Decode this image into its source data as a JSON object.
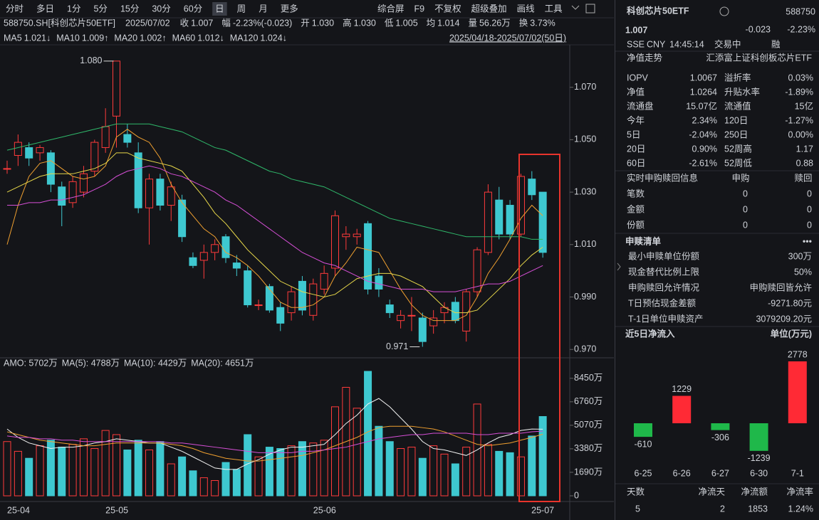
{
  "toolbar": {
    "left": [
      "分时",
      "多日",
      "1分",
      "5分",
      "15分",
      "30分",
      "60分",
      "日",
      "周",
      "月",
      "更多"
    ],
    "active_index": 7,
    "right": [
      "综合屏",
      "F9",
      "不复权",
      "超级叠加",
      "画线",
      "工具"
    ]
  },
  "info": {
    "title": "588750.SH[科创芯片50ETF]",
    "date": "2025/07/02",
    "fields": [
      {
        "label": "收",
        "value": "1.007",
        "tone": "down"
      },
      {
        "label": "幅",
        "value": "-2.23%(-0.023)",
        "tone": "down"
      },
      {
        "label": "开",
        "value": "1.030",
        "tone": "flat"
      },
      {
        "label": "高",
        "value": "1.030",
        "tone": "flat"
      },
      {
        "label": "低",
        "value": "1.005",
        "tone": "down"
      },
      {
        "label": "均",
        "value": "1.014",
        "tone": "down"
      },
      {
        "label": "量",
        "value": "56.26万",
        "tone": "flat"
      },
      {
        "label": "换",
        "value": "3.73%",
        "tone": "flat"
      }
    ],
    "range": "2025/04/18-2025/07/02(50日)"
  },
  "chart_data": [
    {
      "type": "candlestick",
      "open": [
        1.039,
        1.044,
        1.047,
        1.045,
        1.045,
        1.032,
        1.026,
        1.03,
        1.038,
        1.047,
        1.059,
        1.052,
        1.045,
        1.024,
        1.035,
        1.025,
        1.027,
        1.005,
        1.004,
        1.007,
        1.013,
        1.003,
        1.0,
        0.987,
        0.994,
        0.986,
        0.984,
        0.996,
        0.983,
        0.993,
        1.001,
        1.013,
        1.013,
        1.018,
        0.998,
        0.987,
        0.981,
        0.983,
        0.982,
        0.979,
        0.984,
        0.988,
        0.977,
        0.992,
        1.007,
        1.027,
        1.025,
        1.014,
        1.035,
        1.03
      ],
      "high": [
        1.042,
        1.052,
        1.049,
        1.048,
        1.046,
        1.034,
        1.036,
        1.04,
        1.05,
        1.062,
        1.08,
        1.056,
        1.049,
        1.037,
        1.037,
        1.034,
        1.029,
        1.007,
        1.01,
        1.012,
        1.014,
        1.006,
        1.002,
        0.989,
        0.995,
        0.988,
        0.994,
        0.998,
        0.997,
        1.002,
        1.023,
        1.017,
        1.016,
        1.019,
        1.001,
        0.989,
        0.985,
        0.99,
        0.984,
        0.985,
        0.988,
        0.99,
        0.993,
        1.009,
        1.033,
        1.032,
        1.027,
        1.037,
        1.038,
        1.03
      ],
      "low": [
        1.037,
        1.04,
        1.04,
        1.042,
        1.03,
        1.017,
        1.024,
        1.028,
        1.036,
        1.045,
        1.047,
        1.047,
        1.022,
        1.01,
        1.023,
        1.019,
        1.011,
        1.001,
        0.997,
        1.004,
        1.003,
        0.998,
        0.986,
        0.985,
        0.984,
        0.977,
        0.981,
        0.983,
        0.981,
        0.991,
        0.998,
        1.008,
        1.01,
        0.991,
        0.99,
        0.982,
        0.978,
        0.977,
        0.971,
        0.976,
        0.98,
        0.98,
        0.973,
        0.99,
        1.006,
        1.012,
        1.012,
        1.013,
        1.027,
        1.005
      ],
      "close": [
        1.039,
        1.049,
        1.043,
        1.047,
        1.033,
        1.025,
        1.034,
        1.037,
        1.049,
        1.055,
        1.08,
        1.049,
        1.024,
        1.035,
        1.025,
        1.032,
        1.013,
        1.002,
        1.007,
        1.01,
        1.005,
        1.001,
        0.987,
        0.987,
        0.985,
        0.98,
        0.992,
        0.985,
        0.995,
        0.999,
        1.021,
        1.014,
        1.014,
        0.993,
        0.993,
        0.984,
        0.983,
        0.983,
        0.973,
        0.982,
        0.986,
        0.981,
        0.992,
        1.008,
        1.03,
        1.014,
        1.014,
        1.036,
        1.029,
        1.007
      ],
      "up_color": "#ff3b3b",
      "down_color": "#3ec8d0",
      "ylim": [
        0.9668,
        1.0843
      ],
      "yticks": [
        {
          "value": 0.97,
          "label": "0.970"
        },
        {
          "value": 0.99,
          "label": "0.990"
        },
        {
          "value": 1.01,
          "label": "1.010"
        },
        {
          "value": 1.03,
          "label": "1.030"
        },
        {
          "value": 1.05,
          "label": "1.050"
        },
        {
          "value": 1.07,
          "label": "1.070"
        }
      ],
      "series": [
        {
          "name": "MA5",
          "legend_value": "1.021↓",
          "color": "#f0a030",
          "values": [
            1.01,
            1.025,
            1.036,
            1.041,
            1.042,
            1.039,
            1.036,
            1.035,
            1.036,
            1.04,
            1.051,
            1.054,
            1.051,
            1.049,
            1.043,
            1.033,
            1.026,
            1.021,
            1.016,
            1.013,
            1.007,
            1.005,
            1.002,
            0.998,
            0.993,
            0.988,
            0.986,
            0.986,
            0.987,
            0.99,
            0.998,
            1.003,
            1.009,
            1.008,
            1.007,
            1.0,
            0.993,
            0.987,
            0.983,
            0.981,
            0.981,
            0.981,
            0.983,
            0.99,
            0.999,
            1.005,
            1.012,
            1.02,
            1.025,
            1.021
          ]
        },
        {
          "name": "MA10",
          "legend_value": "1.009↑",
          "color": "#e8d84a",
          "values": [
            1.03,
            1.032,
            1.034,
            1.036,
            1.037,
            1.037,
            1.037,
            1.038,
            1.039,
            1.041,
            1.045,
            1.045,
            1.043,
            1.042,
            1.041,
            1.04,
            1.038,
            1.033,
            1.028,
            1.022,
            1.018,
            1.013,
            1.008,
            1.004,
            1.0,
            0.996,
            0.994,
            0.992,
            0.991,
            0.99,
            0.991,
            0.994,
            0.997,
            0.998,
            0.999,
            0.999,
            0.998,
            0.996,
            0.994,
            0.99,
            0.986,
            0.984,
            0.984,
            0.985,
            0.989,
            0.993,
            0.997,
            1.002,
            1.006,
            1.009
          ]
        },
        {
          "name": "MA20",
          "legend_value": "1.002↑",
          "color": "#d64fd6",
          "values": [
            1.025,
            1.025,
            1.026,
            1.026,
            1.027,
            1.027,
            1.028,
            1.029,
            1.031,
            1.033,
            1.036,
            1.038,
            1.039,
            1.04,
            1.039,
            1.037,
            1.036,
            1.034,
            1.032,
            1.03,
            1.027,
            1.025,
            1.022,
            1.019,
            1.016,
            1.013,
            1.01,
            1.007,
            1.005,
            1.003,
            1.002,
            1.0,
            0.998,
            0.996,
            0.995,
            0.994,
            0.993,
            0.993,
            0.993,
            0.992,
            0.992,
            0.992,
            0.993,
            0.994,
            0.995,
            0.995,
            0.996,
            0.998,
            1.0,
            1.002
          ]
        },
        {
          "name": "MA60",
          "legend_value": "1.012↓",
          "color": "#2fb86a",
          "values": [
            1.046,
            1.047,
            1.048,
            1.049,
            1.05,
            1.051,
            1.052,
            1.053,
            1.054,
            1.055,
            1.056,
            1.056,
            1.056,
            1.056,
            1.055,
            1.054,
            1.053,
            1.051,
            1.049,
            1.047,
            1.046,
            1.044,
            1.042,
            1.04,
            1.038,
            1.037,
            1.035,
            1.034,
            1.033,
            1.032,
            1.03,
            1.028,
            1.026,
            1.024,
            1.022,
            1.02,
            1.019,
            1.018,
            1.017,
            1.016,
            1.015,
            1.014,
            1.013,
            1.013,
            1.013,
            1.013,
            1.013,
            1.013,
            1.012,
            1.012
          ]
        },
        {
          "name": "MA120",
          "legend_value": "1.024↓",
          "color": "#3ec8d0"
        }
      ],
      "annotations": [
        {
          "text": "1.080",
          "index": 10,
          "value": 1.08
        },
        {
          "text": "0.971",
          "index": 38,
          "value": 0.971
        }
      ]
    },
    {
      "type": "bar",
      "legend_label": "AMO: 5702万",
      "categories": [
        "25-04",
        null,
        null,
        null,
        null,
        null,
        null,
        null,
        null,
        "25-05",
        null,
        null,
        null,
        null,
        null,
        null,
        null,
        null,
        null,
        null,
        null,
        null,
        null,
        null,
        null,
        null,
        null,
        null,
        "25-06",
        null,
        null,
        null,
        null,
        null,
        null,
        null,
        null,
        null,
        null,
        null,
        null,
        null,
        null,
        null,
        null,
        null,
        null,
        null,
        null,
        "25-07"
      ],
      "values": [
        3900,
        3200,
        2700,
        3600,
        4000,
        3500,
        3700,
        4100,
        3400,
        4700,
        4400,
        3300,
        4000,
        3300,
        3900,
        2300,
        2800,
        1800,
        1300,
        1100,
        2400,
        1900,
        4400,
        2800,
        3500,
        3400,
        3600,
        3900,
        3800,
        4000,
        6400,
        7800,
        6300,
        8950,
        5000,
        3900,
        3400,
        3500,
        2700,
        3600,
        3000,
        2300,
        3500,
        6600,
        3700,
        3200,
        3100,
        2800,
        4300,
        5702
      ],
      "ylim": [
        0,
        8950
      ],
      "yticks": [
        0,
        {
          "value": 1690,
          "label": "1690万"
        },
        {
          "value": 3380,
          "label": "3380万"
        },
        {
          "value": 5070,
          "label": "5070万"
        },
        {
          "value": 6760,
          "label": "6760万"
        },
        {
          "value": 8450,
          "label": "8450万"
        }
      ],
      "series": [
        {
          "name": "MA(5): 4788万",
          "color": "#f2f2f2",
          "values": [
            4800,
            4200,
            3800,
            3600,
            3400,
            3500,
            3500,
            3600,
            3800,
            3900,
            4100,
            4000,
            3900,
            3800,
            3800,
            3500,
            3200,
            2800,
            2400,
            2000,
            1900,
            1900,
            2300,
            2600,
            3000,
            3300,
            3500,
            3500,
            3600,
            3700,
            4400,
            5200,
            5800,
            6600,
            7000,
            6400,
            5600,
            4800,
            3900,
            3400,
            3300,
            3100,
            2900,
            3300,
            3800,
            4200,
            4400,
            4700,
            4800,
            4788
          ]
        },
        {
          "name": "MA(10): 4429万",
          "color": "#f0a030",
          "values": [
            4600,
            4400,
            4200,
            4000,
            3900,
            3800,
            3700,
            3600,
            3600,
            3700,
            3800,
            3800,
            3800,
            3800,
            3800,
            3700,
            3600,
            3400,
            3100,
            2900,
            2700,
            2600,
            2500,
            2500,
            2600,
            2700,
            2800,
            2900,
            3100,
            3300,
            3600,
            3900,
            4200,
            4600,
            4900,
            5000,
            5000,
            5000,
            4900,
            4800,
            4600,
            4300,
            4000,
            3700,
            3600,
            3700,
            3800,
            4000,
            4200,
            4429
          ]
        },
        {
          "name": "MA(20): 4651万",
          "color": "#d64fd6",
          "values": [
            4300,
            4200,
            4200,
            4100,
            4100,
            4000,
            4000,
            3900,
            3900,
            3900,
            3900,
            3900,
            3900,
            3900,
            3900,
            3800,
            3800,
            3700,
            3600,
            3500,
            3400,
            3300,
            3200,
            3100,
            3100,
            3100,
            3100,
            3200,
            3200,
            3300,
            3400,
            3500,
            3700,
            3900,
            4100,
            4200,
            4300,
            4400,
            4400,
            4500,
            4500,
            4500,
            4500,
            4400,
            4400,
            4500,
            4500,
            4500,
            4600,
            4651
          ]
        }
      ]
    },
    {
      "type": "bar",
      "title": "近5日净流入",
      "unit_label": "单位(万元)",
      "categories": [
        "6-25",
        "6-26",
        "6-27",
        "6-30",
        "7-1"
      ],
      "values": [
        -610,
        1229,
        -306,
        -1239,
        2778
      ],
      "pos_color": "#ff2a35",
      "neg_color": "#1fb84a"
    }
  ],
  "panel": {
    "header": {
      "name": "科创芯片50ETF",
      "code": "588750",
      "price": "1.007",
      "change": "-0.023",
      "change_pct": "-2.23%",
      "exchange": "SSE",
      "currency": "CNY",
      "time": "14:45:14",
      "status": "交易中",
      "badge": "融"
    },
    "nav": {
      "label": "净值走势",
      "fund": "汇添富上证科创板芯片ETF"
    },
    "stats": [
      [
        {
          "label": "IOPV",
          "value": "1.0067",
          "tone": "flat"
        },
        {
          "label": "溢折率",
          "value": "0.03%",
          "tone": "up"
        }
      ],
      [
        {
          "label": "净值",
          "value": "1.0264",
          "tone": "down"
        },
        {
          "label": "升贴水率",
          "value": "-1.89%",
          "tone": "down"
        }
      ],
      [
        {
          "label": "流通盘",
          "value": "15.07亿",
          "tone": "flat"
        },
        {
          "label": "流通值",
          "value": "15亿",
          "tone": "flat"
        }
      ],
      [
        {
          "label": "今年",
          "value": "2.34%",
          "tone": "up"
        },
        {
          "label": "120日",
          "value": "-1.27%",
          "tone": "down"
        }
      ],
      [
        {
          "label": "5日",
          "value": "-2.04%",
          "tone": "down"
        },
        {
          "label": "250日",
          "value": "0.00%",
          "tone": "flat"
        }
      ],
      [
        {
          "label": "20日",
          "value": "0.90%",
          "tone": "up"
        },
        {
          "label": "52周高",
          "value": "1.17",
          "tone": "flat"
        }
      ],
      [
        {
          "label": "60日",
          "value": "-2.61%",
          "tone": "down"
        },
        {
          "label": "52周低",
          "value": "0.88",
          "tone": "flat"
        }
      ]
    ],
    "subscription": {
      "title": "实时申购赎回信息",
      "columns": [
        "申购",
        "赎回"
      ],
      "rows": [
        {
          "label": "笔数",
          "values": [
            0,
            0
          ]
        },
        {
          "label": "金额",
          "values": [
            0,
            0
          ]
        },
        {
          "label": "份额",
          "values": [
            0,
            0
          ]
        }
      ]
    },
    "list": {
      "title": "申赎清单",
      "more": "•••",
      "rows": [
        {
          "label": "最小申赎单位份额",
          "value": "300万"
        },
        {
          "label": "现金替代比例上限",
          "value": "50%"
        },
        {
          "label": "申购赎回允许情况",
          "value": "申购赎回皆允许"
        },
        {
          "label": "T日预估现金差额",
          "value": "-9271.80元"
        },
        {
          "label": "T-1日单位申赎资产",
          "value": "3079209.20元"
        }
      ]
    },
    "flow_summary": {
      "headers": [
        "天数",
        "净流天",
        "净流额",
        "净流率"
      ],
      "values": [
        {
          "value": 5,
          "tone": "flat"
        },
        {
          "value": 2,
          "tone": "up"
        },
        {
          "value": 1853,
          "tone": "up"
        },
        {
          "value": "1.24%",
          "tone": "up"
        }
      ]
    }
  }
}
